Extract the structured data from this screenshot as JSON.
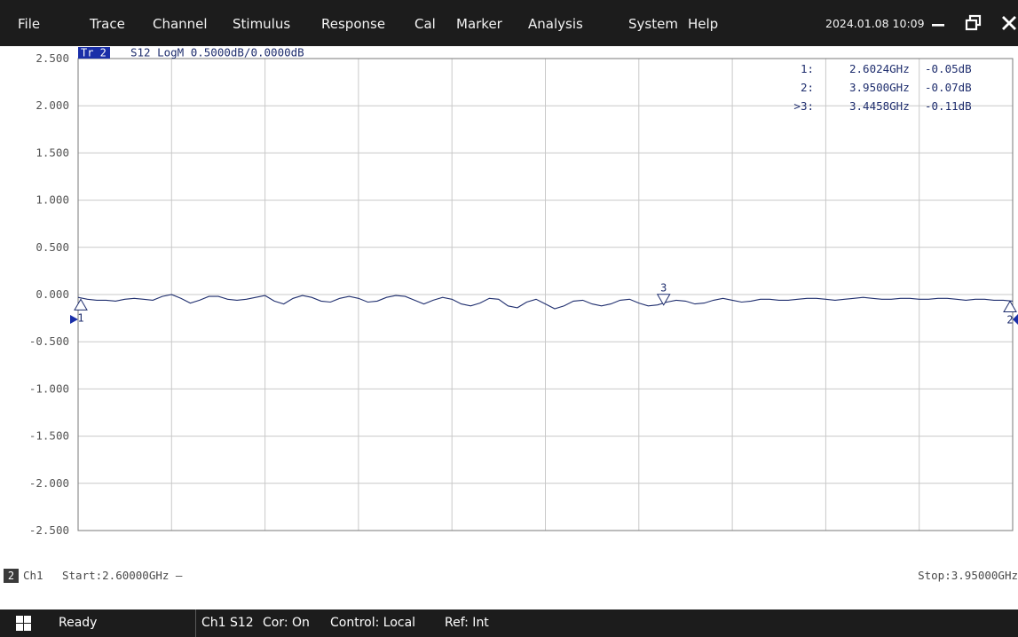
{
  "menubar": {
    "items": [
      "File",
      "Trace",
      "Channel",
      "Stimulus",
      "Response",
      "Cal",
      "Marker",
      "Analysis",
      "System",
      "Help"
    ],
    "datetime": "2024.01.08 10:09"
  },
  "trace": {
    "label": "Tr 2",
    "info": "S12 LogM 0.5000dB/0.0000dB",
    "color": "#1f2e6e",
    "label_bg": "#1a2fa8"
  },
  "markers": [
    {
      "id": "1:",
      "freq": "2.6024GHz",
      "value": "-0.05dB",
      "active": false,
      "x_ghz": 2.6024,
      "y_db": -0.05
    },
    {
      "id": "2:",
      "freq": "3.9500GHz",
      "value": "-0.07dB",
      "active": false,
      "x_ghz": 3.95,
      "y_db": -0.07
    },
    {
      "id": ">3:",
      "freq": "3.4458GHz",
      "value": "-0.11dB",
      "active": true,
      "x_ghz": 3.4458,
      "y_db": -0.11
    }
  ],
  "marker_symbols": [
    "1",
    "2",
    "3"
  ],
  "chart_data": {
    "type": "line",
    "ylabels": [
      "2.500",
      "2.000",
      "1.500",
      "1.000",
      "0.500",
      "0.000",
      "-0.500",
      "-1.000",
      "-1.500",
      "-2.000",
      "-2.500"
    ],
    "ylim": [
      -2.5,
      2.5
    ],
    "xlim": [
      2.6,
      3.95
    ],
    "x_divisions": 10,
    "grid": true,
    "reference_value": 0.0,
    "series": [
      {
        "x": [
          2.6,
          2.6135,
          2.627,
          2.6405,
          2.654,
          2.6675,
          2.681,
          2.6945,
          2.708,
          2.7215,
          2.735,
          2.7485,
          2.762,
          2.7755,
          2.789,
          2.8025,
          2.816,
          2.8295,
          2.843,
          2.8565,
          2.87,
          2.8835,
          2.897,
          2.9105,
          2.924,
          2.9375,
          2.951,
          2.9645,
          2.978,
          2.9915,
          3.005,
          3.0185,
          3.032,
          3.0455,
          3.059,
          3.0725,
          3.086,
          3.0995,
          3.113,
          3.1265,
          3.14,
          3.1535,
          3.167,
          3.1805,
          3.194,
          3.2075,
          3.221,
          3.2345,
          3.248,
          3.2615,
          3.275,
          3.2885,
          3.302,
          3.3155,
          3.329,
          3.3425,
          3.356,
          3.3695,
          3.383,
          3.3965,
          3.41,
          3.4235,
          3.437,
          3.4505,
          3.464,
          3.4775,
          3.491,
          3.5045,
          3.518,
          3.5315,
          3.545,
          3.5585,
          3.572,
          3.5855,
          3.599,
          3.6125,
          3.626,
          3.6395,
          3.653,
          3.6665,
          3.68,
          3.6935,
          3.707,
          3.7205,
          3.734,
          3.7475,
          3.761,
          3.7745,
          3.788,
          3.8015,
          3.815,
          3.8285,
          3.842,
          3.8555,
          3.869,
          3.8825,
          3.896,
          3.9095,
          3.923,
          3.9365,
          3.95
        ],
        "y": [
          -0.03,
          -0.05,
          -0.06,
          -0.06,
          -0.07,
          -0.05,
          -0.04,
          -0.05,
          -0.06,
          -0.02,
          0.0,
          -0.04,
          -0.09,
          -0.06,
          -0.02,
          -0.02,
          -0.05,
          -0.06,
          -0.05,
          -0.03,
          -0.01,
          -0.07,
          -0.1,
          -0.04,
          -0.01,
          -0.03,
          -0.07,
          -0.08,
          -0.04,
          -0.02,
          -0.04,
          -0.08,
          -0.07,
          -0.03,
          -0.01,
          -0.02,
          -0.06,
          -0.1,
          -0.06,
          -0.03,
          -0.05,
          -0.1,
          -0.12,
          -0.09,
          -0.04,
          -0.05,
          -0.12,
          -0.14,
          -0.08,
          -0.05,
          -0.1,
          -0.15,
          -0.12,
          -0.07,
          -0.06,
          -0.1,
          -0.12,
          -0.1,
          -0.06,
          -0.05,
          -0.09,
          -0.12,
          -0.11,
          -0.08,
          -0.06,
          -0.07,
          -0.1,
          -0.09,
          -0.06,
          -0.04,
          -0.06,
          -0.08,
          -0.07,
          -0.05,
          -0.05,
          -0.06,
          -0.06,
          -0.05,
          -0.04,
          -0.04,
          -0.05,
          -0.06,
          -0.05,
          -0.04,
          -0.03,
          -0.04,
          -0.05,
          -0.05,
          -0.04,
          -0.04,
          -0.05,
          -0.05,
          -0.04,
          -0.04,
          -0.05,
          -0.06,
          -0.05,
          -0.05,
          -0.06,
          -0.06,
          -0.07
        ]
      }
    ]
  },
  "channel": {
    "number": "2",
    "label": "Ch1",
    "start": "Start:2.60000GHz —",
    "stop": "Stop:3.95000GHz"
  },
  "statusbar": {
    "ready": "Ready",
    "items": [
      "Ch1",
      "S12",
      "Cor: On",
      "Control: Local",
      "Ref: Int"
    ]
  },
  "colors": {
    "bar_bg": "#1c1c1c",
    "grid": "#c9c9c9",
    "frame": "#7a7a7a",
    "axis_text": "#555555"
  }
}
